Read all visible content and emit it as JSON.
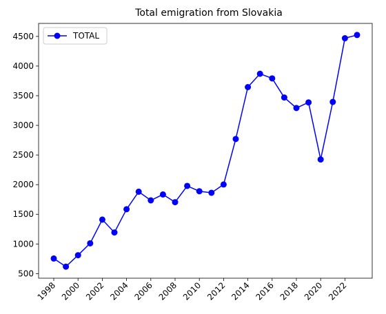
{
  "chart_data": {
    "type": "line",
    "title": "Total emigration from Slovakia",
    "xlabel": "",
    "ylabel": "",
    "x": [
      1998,
      1999,
      2000,
      2001,
      2002,
      2003,
      2004,
      2005,
      2006,
      2007,
      2008,
      2009,
      2010,
      2011,
      2012,
      2013,
      2014,
      2015,
      2016,
      2017,
      2018,
      2019,
      2020,
      2021,
      2022,
      2023
    ],
    "series": [
      {
        "name": "TOTAL",
        "color": "#0000ff",
        "marker": "circle",
        "values": [
          755,
          618,
          811,
          1011,
          1411,
          1194,
          1586,
          1881,
          1735,
          1835,
          1705,
          1979,
          1889,
          1863,
          2003,
          2770,
          3645,
          3870,
          3792,
          3470,
          3293,
          3387,
          2425,
          3395,
          4469,
          4524
        ]
      }
    ],
    "xticks": [
      "1998",
      "2000",
      "2002",
      "2004",
      "2006",
      "2008",
      "2010",
      "2012",
      "2014",
      "2016",
      "2018",
      "2020",
      "2022"
    ],
    "yticks": [
      "500",
      "1000",
      "1500",
      "2000",
      "2500",
      "3000",
      "3500",
      "4000",
      "4500"
    ],
    "xlim": [
      1996.75,
      2024.25
    ],
    "ylim": [
      423,
      4719
    ],
    "grid": false,
    "legend": "upper-left"
  }
}
